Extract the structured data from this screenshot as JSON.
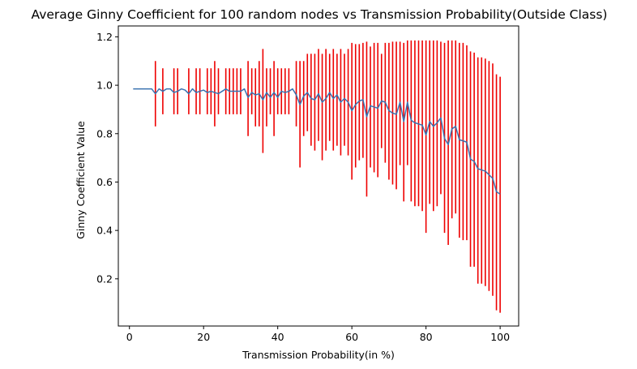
{
  "chart_data": {
    "type": "line",
    "title": "Average Ginny Coefficient for 100 random nodes vs Transmission Probability(Outside Class)",
    "xlabel": "Transmission Probability(in %)",
    "ylabel": "Ginny Coefficient Value",
    "xlim": [
      -3,
      105
    ],
    "ylim": [
      0.005,
      1.245
    ],
    "x_ticks": [
      0,
      20,
      40,
      60,
      80,
      100
    ],
    "y_ticks": [
      0.2,
      0.4,
      0.6,
      0.8,
      1.0,
      1.2
    ],
    "x_tick_labels": [
      "0",
      "20",
      "40",
      "60",
      "80",
      "100"
    ],
    "y_tick_labels": [
      "0.2",
      "0.4",
      "0.6",
      "0.8",
      "1.0",
      "1.2"
    ],
    "grid": false,
    "colors": {
      "line": "#3a72b0",
      "error_bars": "#ee0000"
    },
    "series": [
      {
        "x": [
          1,
          2,
          3,
          4,
          5,
          6,
          7,
          8,
          9,
          10,
          11,
          12,
          13,
          14,
          15,
          16,
          17,
          18,
          19,
          20,
          21,
          22,
          23,
          24,
          25,
          26,
          27,
          28,
          29,
          30,
          31,
          32,
          33,
          34,
          35,
          36,
          37,
          38,
          39,
          40,
          41,
          42,
          43,
          44,
          45,
          46,
          47,
          48,
          49,
          50,
          51,
          52,
          53,
          54,
          55,
          56,
          57,
          58,
          59,
          60,
          61,
          62,
          63,
          64,
          65,
          66,
          67,
          68,
          69,
          70,
          71,
          72,
          73,
          74,
          75,
          76,
          77,
          78,
          79,
          80,
          81,
          82,
          83,
          84,
          85,
          86,
          87,
          88,
          89,
          90,
          91,
          92,
          93,
          94,
          95,
          96,
          97,
          98,
          99,
          100
        ],
        "y": [
          0.985,
          0.985,
          0.985,
          0.985,
          0.985,
          0.985,
          0.965,
          0.985,
          0.975,
          0.985,
          0.985,
          0.97,
          0.975,
          0.985,
          0.98,
          0.965,
          0.985,
          0.97,
          0.975,
          0.98,
          0.97,
          0.975,
          0.97,
          0.965,
          0.975,
          0.985,
          0.975,
          0.975,
          0.975,
          0.975,
          0.985,
          0.95,
          0.97,
          0.96,
          0.965,
          0.94,
          0.97,
          0.95,
          0.97,
          0.95,
          0.975,
          0.97,
          0.975,
          0.985,
          0.96,
          0.92,
          0.955,
          0.97,
          0.945,
          0.94,
          0.965,
          0.93,
          0.945,
          0.97,
          0.945,
          0.96,
          0.93,
          0.945,
          0.93,
          0.895,
          0.92,
          0.935,
          0.94,
          0.87,
          0.915,
          0.91,
          0.905,
          0.935,
          0.93,
          0.895,
          0.885,
          0.88,
          0.93,
          0.85,
          0.93,
          0.855,
          0.845,
          0.84,
          0.835,
          0.795,
          0.85,
          0.83,
          0.845,
          0.865,
          0.78,
          0.755,
          0.82,
          0.83,
          0.775,
          0.77,
          0.765,
          0.695,
          0.685,
          0.655,
          0.65,
          0.645,
          0.63,
          0.615,
          0.56,
          0.55
        ],
        "upper": [
          null,
          null,
          null,
          null,
          null,
          null,
          1.1,
          null,
          1.07,
          null,
          null,
          1.07,
          1.07,
          null,
          null,
          1.07,
          null,
          1.07,
          1.07,
          null,
          1.07,
          1.07,
          1.1,
          1.07,
          null,
          1.07,
          1.07,
          1.07,
          1.07,
          1.07,
          null,
          1.1,
          1.07,
          1.07,
          1.1,
          1.15,
          1.07,
          1.07,
          1.1,
          1.07,
          1.07,
          1.07,
          1.07,
          null,
          1.1,
          1.1,
          1.1,
          1.13,
          1.13,
          1.13,
          1.15,
          1.13,
          1.15,
          1.13,
          1.15,
          1.13,
          1.15,
          1.13,
          1.15,
          1.175,
          1.17,
          1.17,
          1.175,
          1.18,
          1.16,
          1.175,
          1.175,
          1.13,
          1.175,
          1.175,
          1.18,
          1.18,
          1.18,
          1.175,
          1.185,
          1.185,
          1.185,
          1.185,
          1.185,
          1.185,
          1.185,
          1.185,
          1.185,
          1.18,
          1.175,
          1.185,
          1.185,
          1.185,
          1.175,
          1.175,
          1.165,
          1.14,
          1.135,
          1.115,
          1.115,
          1.11,
          1.1,
          1.09,
          1.045,
          1.035
        ],
        "lower": [
          null,
          null,
          null,
          null,
          null,
          null,
          0.83,
          null,
          0.88,
          null,
          null,
          0.88,
          0.88,
          null,
          null,
          0.88,
          null,
          0.88,
          0.88,
          null,
          0.88,
          0.88,
          0.83,
          0.88,
          null,
          0.88,
          0.88,
          0.88,
          0.88,
          0.88,
          null,
          0.79,
          0.88,
          0.83,
          0.83,
          0.72,
          0.83,
          0.88,
          0.79,
          0.88,
          0.88,
          0.88,
          0.88,
          null,
          0.83,
          0.66,
          0.79,
          0.81,
          0.75,
          0.73,
          0.77,
          0.69,
          0.73,
          0.77,
          0.73,
          0.75,
          0.71,
          0.75,
          0.71,
          0.61,
          0.66,
          0.69,
          0.7,
          0.54,
          0.66,
          0.64,
          0.62,
          0.74,
          0.68,
          0.61,
          0.59,
          0.57,
          0.67,
          0.52,
          0.67,
          0.52,
          0.5,
          0.5,
          0.48,
          0.39,
          0.51,
          0.48,
          0.5,
          0.55,
          0.39,
          0.34,
          0.45,
          0.47,
          0.37,
          0.36,
          0.36,
          0.25,
          0.25,
          0.18,
          0.18,
          0.17,
          0.15,
          0.13,
          0.07,
          0.06
        ]
      }
    ]
  }
}
